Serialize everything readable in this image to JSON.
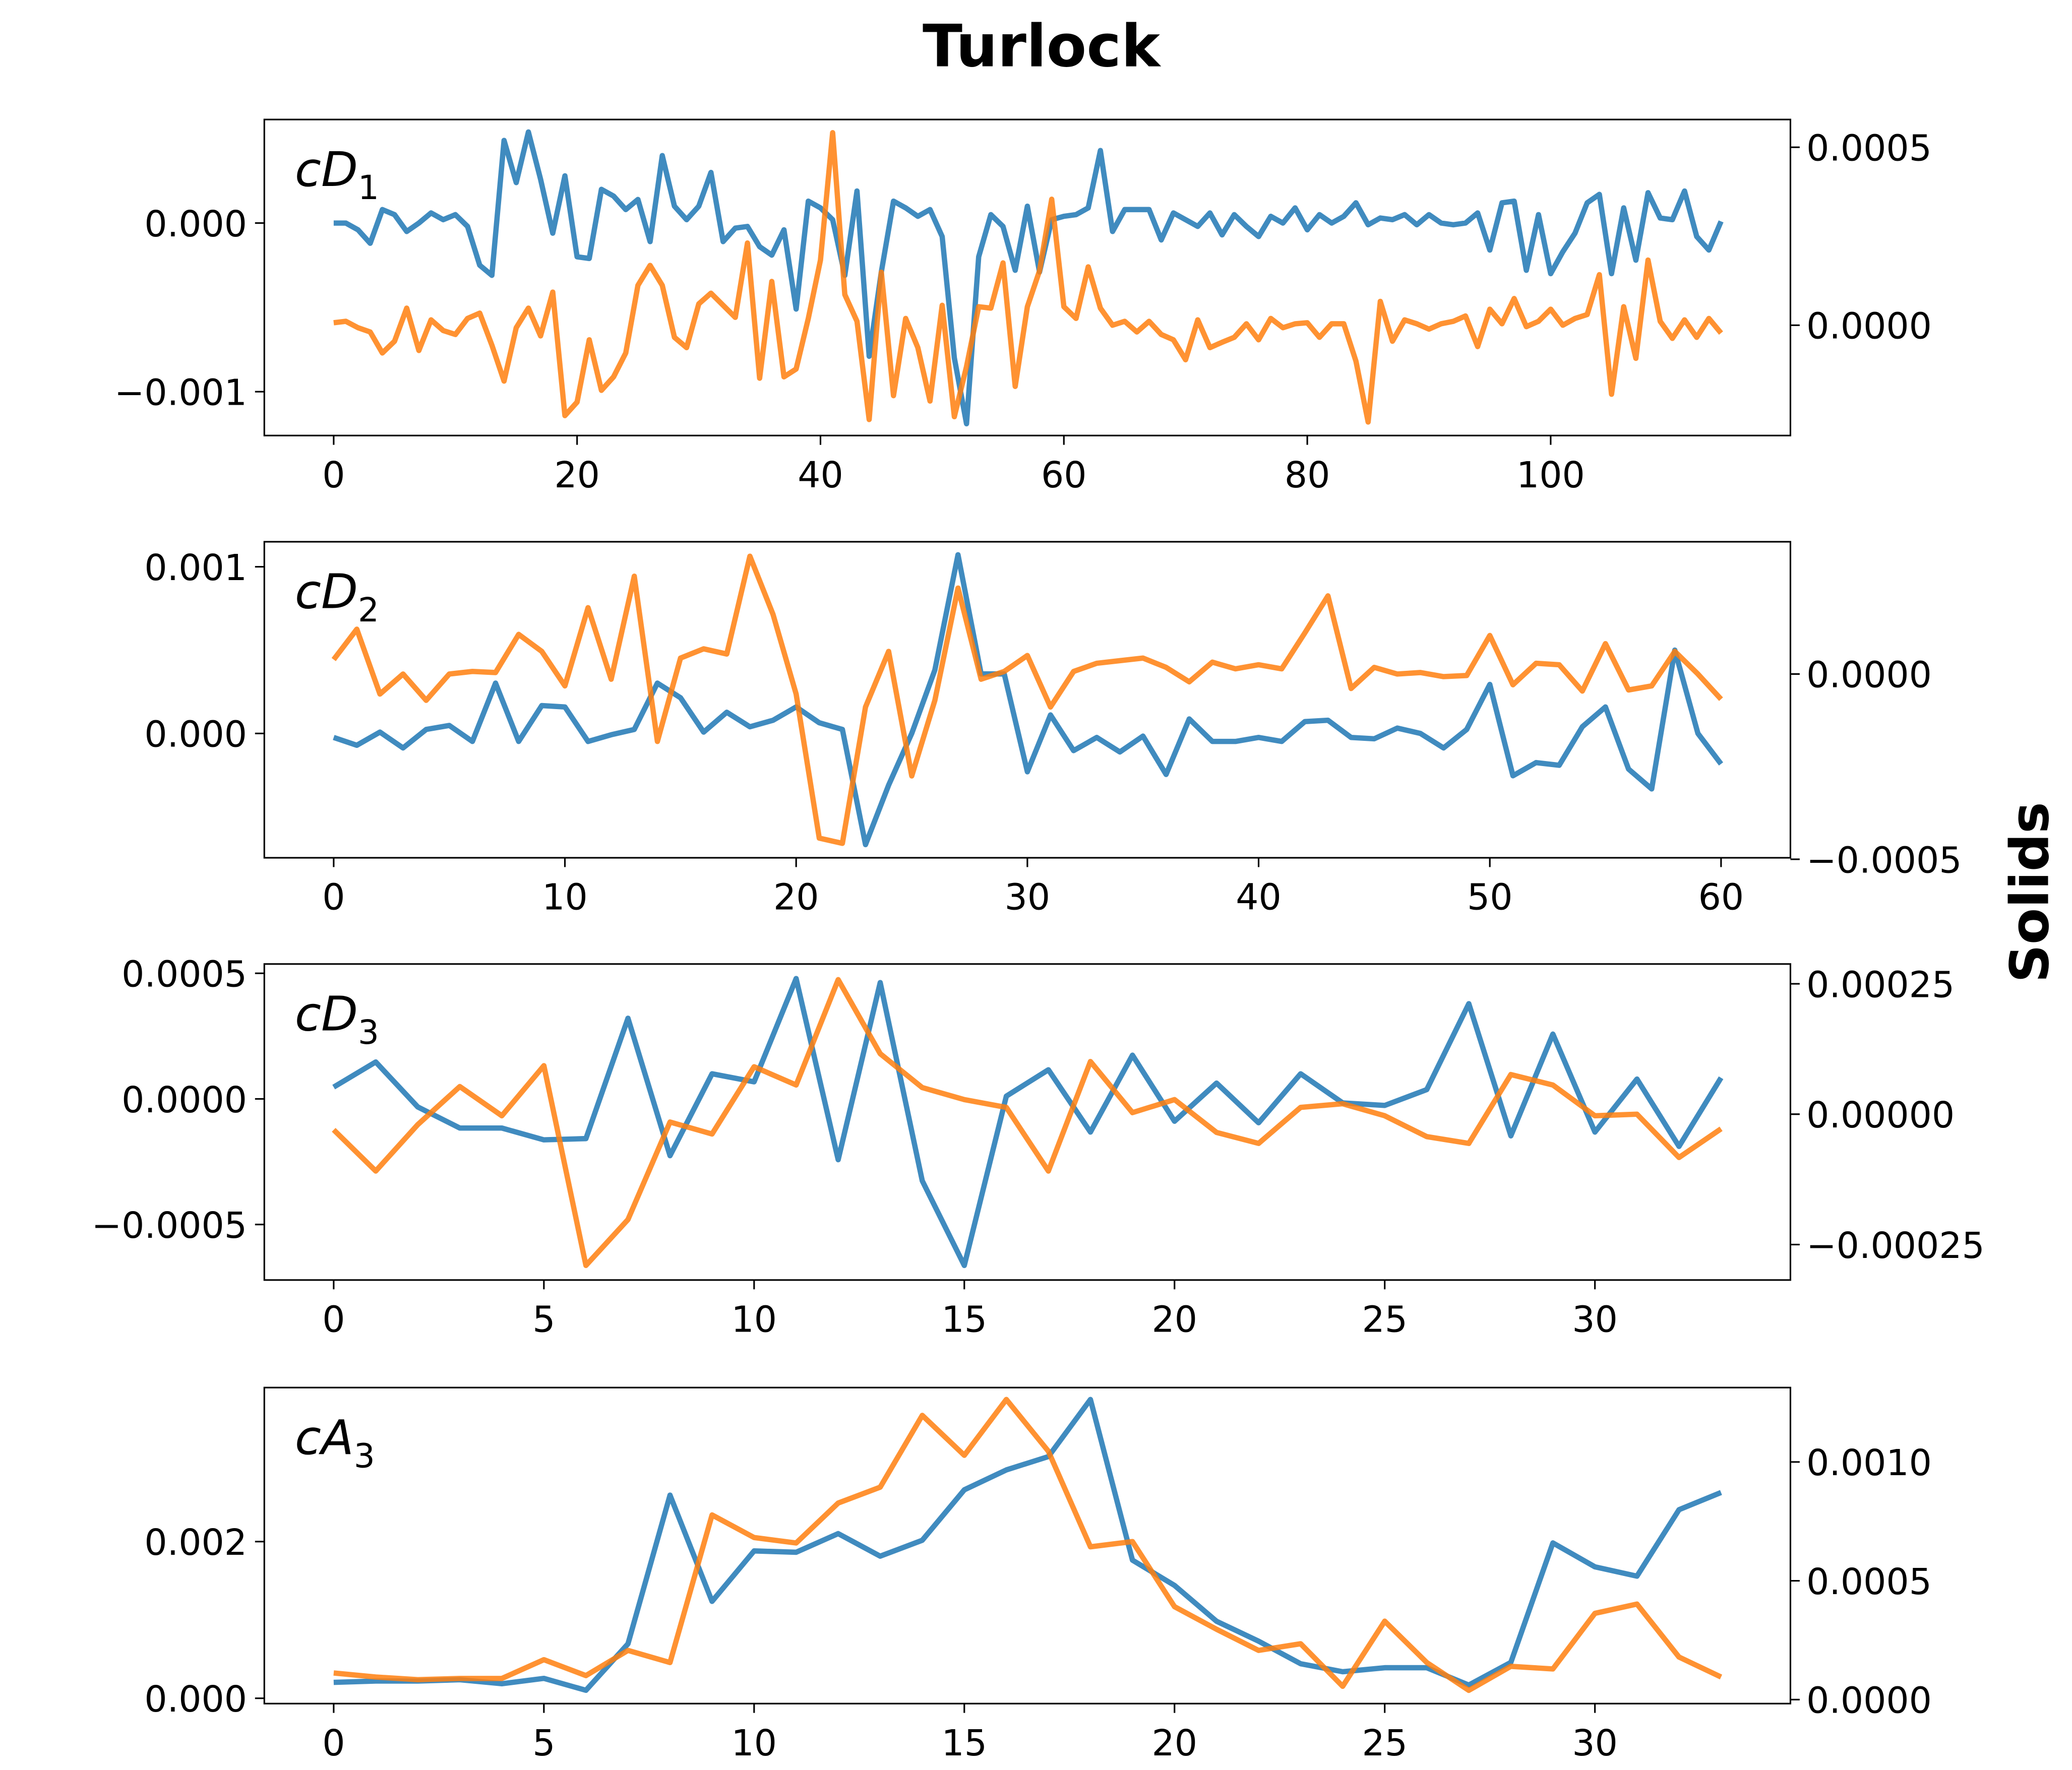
{
  "title": "Turlock",
  "y2label": "Solids",
  "y2label_color": "#ff7f0e",
  "chart_data": [
    {
      "type": "line",
      "label": {
        "text": "cD",
        "subscript": "1"
      },
      "x": [
        0,
        1,
        2,
        3,
        4,
        5,
        6,
        7,
        8,
        9,
        10,
        11,
        12,
        13,
        14,
        15,
        16,
        17,
        18,
        19,
        20,
        21,
        22,
        23,
        24,
        25,
        26,
        27,
        28,
        29,
        30,
        31,
        32,
        33,
        34,
        35,
        36,
        37,
        38,
        39,
        40,
        41,
        42,
        43,
        44,
        45,
        46,
        47,
        48,
        49,
        50,
        51,
        52,
        53,
        54,
        55,
        56,
        57,
        58,
        59,
        60,
        61,
        62,
        63,
        64,
        65,
        66,
        67,
        68,
        69,
        70,
        71,
        72,
        73,
        74,
        75,
        76,
        77,
        78,
        79,
        80,
        81,
        82,
        83,
        84,
        85,
        86,
        87,
        88,
        89,
        90,
        91,
        92,
        93,
        94,
        95,
        96,
        97,
        98,
        99,
        100,
        101,
        102,
        103,
        104,
        105,
        106,
        107,
        108,
        109,
        110,
        111,
        112,
        113,
        114
      ],
      "xlim": [
        -5.7,
        119.7
      ],
      "xticks": [
        0,
        20,
        40,
        60,
        80,
        100
      ],
      "ylim": [
        -0.00126,
        0.000614
      ],
      "yticks": [
        {
          "value": -0.001,
          "label": "−0.001"
        },
        {
          "value": 0,
          "label": "0.000"
        }
      ],
      "y2lim": [
        -0.00031,
        0.000578
      ],
      "y2ticks": [
        {
          "value": 0,
          "label": "0.0000"
        },
        0.0005
      ],
      "series": [
        {
          "color": "#1f77b4",
          "axis": "y",
          "values": [
            0,
            0,
            -4e-05,
            -0.00012,
            8e-05,
            5e-05,
            -5e-05,
            0,
            6e-05,
            2e-05,
            5e-05,
            -2e-05,
            -0.00025,
            -0.00031,
            0.00049,
            0.00024,
            0.00054,
            0.00026,
            -6e-05,
            0.00028,
            -0.0002,
            -0.00021,
            0.0002,
            0.00016,
            8e-05,
            0.00014,
            -0.00011,
            0.0004,
            0.0001,
            2e-05,
            0.0001,
            0.0003,
            -0.00011,
            -3e-05,
            -2e-05,
            -0.00014,
            -0.00019,
            -4e-05,
            -0.00051,
            0.00013,
            9e-05,
            2e-05,
            -0.00031,
            0.00019,
            -0.00079,
            -0.00029,
            0.00013,
            9e-05,
            4e-05,
            8e-05,
            -8e-05,
            -0.0008,
            -0.00119,
            -0.0002,
            5e-05,
            -2e-05,
            -0.00028,
            0.0001,
            -0.00029,
            2e-05,
            4e-05,
            5e-05,
            9e-05,
            0.00043,
            -5e-05,
            8e-05,
            8e-05,
            8e-05,
            -0.0001,
            6e-05,
            2e-05,
            -2e-05,
            6e-05,
            -7e-05,
            5e-05,
            -2e-05,
            -8e-05,
            4e-05,
            0,
            9e-05,
            -4e-05,
            5e-05,
            0,
            4e-05,
            0.00012,
            -1e-05,
            3e-05,
            2e-05,
            5e-05,
            -1e-05,
            5e-05,
            0,
            -1e-05,
            0,
            6e-05,
            -0.00016,
            0.00012,
            0.00013,
            -0.00028,
            5e-05,
            -0.0003,
            -0.00017,
            -6e-05,
            0.00012,
            0.00017,
            -0.0003,
            9e-05,
            -0.00022,
            0.00018,
            3e-05,
            2e-05,
            0.00019,
            -8e-05,
            -0.00016,
            1e-05
          ]
        },
        {
          "color": "#ff7f0e",
          "axis": "y2",
          "values": [
            7e-06,
            1.1e-05,
            -7e-06,
            -1.9e-05,
            -7.8e-05,
            -4.5e-05,
            4.8e-05,
            -7.1e-05,
            1.5e-05,
            -1.5e-05,
            -2.6e-05,
            1.9e-05,
            3.4e-05,
            -5.6e-05,
            -0.000157,
            -7e-06,
            4.8e-05,
            -3e-05,
            9.3e-05,
            -0.000254,
            -0.000216,
            -4.1e-05,
            -0.000183,
            -0.000145,
            -7.8e-05,
            0.000112,
            0.000168,
            0.000112,
            -3.4e-05,
            -6.3e-05,
            6e-05,
            9e-05,
            5.6e-05,
            2.2e-05,
            0.000231,
            -0.000149,
            0.000123,
            -0.000145,
            -0.000123,
            1.9e-05,
            0.000183,
            0.000541,
            8.6e-05,
            1.1e-05,
            -0.000265,
            0.000149,
            -0.000198,
            1.9e-05,
            -6.3e-05,
            -0.000213,
            5.6e-05,
            -0.000257,
            -0.000116,
            5.2e-05,
            4.8e-05,
            0.000175,
            -0.000172,
            5.2e-05,
            0.000153,
            0.000354,
            5.2e-05,
            1.9e-05,
            0.000164,
            4.8e-05,
            0,
            1.1e-05,
            -1.9e-05,
            1.1e-05,
            -2.6e-05,
            -4.1e-05,
            -9.7e-05,
            1.5e-05,
            -6.3e-05,
            -4.8e-05,
            -3.4e-05,
            4e-06,
            -4.1e-05,
            1.9e-05,
            -7e-06,
            4e-06,
            7e-06,
            -3.4e-05,
            4e-06,
            4e-06,
            -0.000101,
            -0.000272,
            6.7e-05,
            -4.5e-05,
            1.5e-05,
            4e-06,
            -1.1e-05,
            4e-06,
            1.1e-05,
            2.6e-05,
            -6e-05,
            4.5e-05,
            4e-06,
            7.5e-05,
            -4e-06,
            1.1e-05,
            4.5e-05,
            0,
            1.9e-05,
            3e-05,
            0.000142,
            -0.000194,
            5.2e-05,
            -9.3e-05,
            0.000183,
            1.1e-05,
            -3.7e-05,
            1.5e-05,
            -3.4e-05,
            1.9e-05,
            -2.2e-05
          ]
        }
      ]
    },
    {
      "type": "line",
      "label": {
        "text": "cD",
        "subscript": "2"
      },
      "x": [
        0,
        1,
        2,
        3,
        4,
        5,
        6,
        7,
        8,
        9,
        10,
        11,
        12,
        13,
        14,
        15,
        16,
        17,
        18,
        19,
        20,
        21,
        22,
        23,
        24,
        25,
        26,
        27,
        28,
        29,
        30,
        31,
        32,
        33,
        34,
        35,
        36,
        37,
        38,
        39,
        40,
        41,
        42,
        43,
        44,
        45,
        46,
        47,
        48,
        49,
        50,
        51,
        52,
        53,
        54,
        55,
        56,
        57,
        58,
        59,
        60
      ],
      "xlim": [
        -3,
        63
      ],
      "xticks": [
        0,
        10,
        20,
        30,
        40,
        50,
        60
      ],
      "ylim": [
        -0.000746,
        0.00115
      ],
      "yticks": [
        {
          "value": 0,
          "label": "0.000"
        },
        0.001
      ],
      "y2lim": [
        -0.000496,
        0.000357
      ],
      "y2ticks": [
        {
          "value": -0.0005,
          "label": "−0.0005"
        },
        {
          "value": 0,
          "label": "0.0000"
        }
      ],
      "series": [
        {
          "color": "#1f77b4",
          "axis": "y",
          "values": [
            -2.4e-05,
            -7.1e-05,
            8e-06,
            -8.7e-05,
            2.4e-05,
            4.8e-05,
            -4.8e-05,
            0.000302,
            -4.8e-05,
            0.000167,
            0.000159,
            -4.8e-05,
            -8e-06,
            2.4e-05,
            0.000302,
            0.000214,
            8e-06,
            0.000127,
            4e-05,
            7.9e-05,
            0.000159,
            6.4e-05,
            2.4e-05,
            -0.000667,
            -0.00031,
            0,
            0.000381,
            0.001072,
            0.000357,
            0.000357,
            -0.00023,
            0.000111,
            -0.000103,
            -2.4e-05,
            -0.000111,
            -1.6e-05,
            -0.000246,
            8.7e-05,
            -4.8e-05,
            -4.8e-05,
            -2.4e-05,
            -4.8e-05,
            7.1e-05,
            7.9e-05,
            -2.4e-05,
            -3.2e-05,
            3.2e-05,
            0,
            -8.7e-05,
            2.4e-05,
            0.000294,
            -0.000254,
            -0.000175,
            -0.000191,
            4e-05,
            0.000159,
            -0.000214,
            -0.000333,
            0.0005,
            0,
            -0.000183
          ]
        },
        {
          "color": "#ff7f0e",
          "axis": "y2",
          "values": [
            3.9e-05,
            0.000121,
            -5.4e-05,
            0,
            -7.1e-05,
            0,
            7e-06,
            4e-06,
            0.000107,
            6.1e-05,
            -3.2e-05,
            0.000179,
            -1.4e-05,
            0.000264,
            -0.000182,
            4.3e-05,
            6.8e-05,
            5.4e-05,
            0.000318,
            0.000161,
            -5.4e-05,
            -0.000443,
            -0.000457,
            -8.9e-05,
            6.1e-05,
            -0.000275,
            -7.1e-05,
            0.000232,
            -1.4e-05,
            7e-06,
            5e-05,
            -8.9e-05,
            7e-06,
            2.9e-05,
            3.6e-05,
            4.3e-05,
            1.8e-05,
            -2.1e-05,
            3.2e-05,
            1.4e-05,
            2.5e-05,
            1.4e-05,
            0.000111,
            0.000211,
            -3.9e-05,
            1.8e-05,
            0,
            4e-06,
            -7e-06,
            -4e-06,
            0.000104,
            -2.9e-05,
            2.9e-05,
            2.5e-05,
            -4.6e-05,
            8.2e-05,
            -4.3e-05,
            -3.2e-05,
            6.1e-05,
            0,
            -6.8e-05
          ]
        }
      ]
    },
    {
      "type": "line",
      "label": {
        "text": "cD",
        "subscript": "3"
      },
      "x": [
        0,
        1,
        2,
        3,
        4,
        5,
        6,
        7,
        8,
        9,
        10,
        11,
        12,
        13,
        14,
        15,
        16,
        17,
        18,
        19,
        20,
        21,
        22,
        23,
        24,
        25,
        26,
        27,
        28,
        29,
        30,
        31,
        32,
        33
      ],
      "xlim": [
        -1.65,
        34.65
      ],
      "xticks": [
        0,
        5,
        10,
        15,
        20,
        25,
        30
      ],
      "ylim": [
        -0.000721,
        0.000537
      ],
      "yticks": [
        {
          "value": -0.0005,
          "label": "−0.0005"
        },
        {
          "value": 0,
          "label": "0.0000"
        },
        0.0005
      ],
      "y2lim": [
        -0.000318,
        0.000288
      ],
      "y2ticks": [
        {
          "value": -0.00025,
          "label": "−0.00025"
        },
        {
          "value": 0,
          "label": "0.00000"
        },
        0.00025
      ],
      "series": [
        {
          "color": "#1f77b4",
          "axis": "y",
          "values": [
            4.7e-05,
            0.000147,
            -3.2e-05,
            -0.000116,
            -0.000116,
            -0.000163,
            -0.000158,
            0.000321,
            -0.000226,
            0.0001,
            6.8e-05,
            0.000479,
            -0.000242,
            0.000463,
            -0.000326,
            -0.000663,
            1.1e-05,
            0.000116,
            -0.000132,
            0.000174,
            -8.9e-05,
            6.3e-05,
            -9.5e-05,
            0.0001,
            -1.6e-05,
            -2.6e-05,
            3.7e-05,
            0.000379,
            -0.000147,
            0.000258,
            -0.000132,
            7.9e-05,
            -0.000189,
            8.4e-05
          ]
        },
        {
          "color": "#ff7f0e",
          "axis": "y2",
          "values": [
            -3e-05,
            -0.000109,
            -2e-05,
            5.3e-05,
            -3e-06,
            9.3e-05,
            -0.00029,
            -0.000202,
            -1.5e-05,
            -3.8e-05,
            9.1e-05,
            5.6e-05,
            0.000258,
            0.000116,
            5.1e-05,
            2.8e-05,
            1.3e-05,
            -0.000109,
            0.000101,
            3e-06,
            2.8e-05,
            -3.5e-05,
            -5.6e-05,
            1.3e-05,
            2e-05,
            -3e-06,
            -4.3e-05,
            -5.6e-05,
            7.6e-05,
            5.6e-05,
            -3e-06,
            0,
            -8.3e-05,
            -2.8e-05
          ]
        }
      ]
    },
    {
      "type": "line",
      "label": {
        "text": "cA",
        "subscript": "3"
      },
      "x": [
        0,
        1,
        2,
        3,
        4,
        5,
        6,
        7,
        8,
        9,
        10,
        11,
        12,
        13,
        14,
        15,
        16,
        17,
        18,
        19,
        20,
        21,
        22,
        23,
        24,
        25,
        26,
        27,
        28,
        29,
        30,
        31,
        32,
        33
      ],
      "xlim": [
        -1.65,
        34.65
      ],
      "xticks": [
        0,
        5,
        10,
        15,
        20,
        25,
        30
      ],
      "ylim": [
        -6.78e-05,
        0.003966
      ],
      "yticks": [
        {
          "value": 0,
          "label": "0.000"
        },
        0.002
      ],
      "y2lim": [
        -1.68e-05,
        0.001313
      ],
      "y2ticks": [
        {
          "value": 0,
          "label": "0.0000"
        },
        0.0005,
        {
          "value": 0.001,
          "label": "0.0010"
        }
      ],
      "series": [
        {
          "color": "#1f77b4",
          "axis": "y",
          "values": [
            0.000203,
            0.00022,
            0.00022,
            0.000237,
            0.000186,
            0.000254,
            0.000102,
            0.000695,
            0.002593,
            0.001237,
            0.001881,
            0.001864,
            0.002102,
            0.001814,
            0.002017,
            0.002661,
            0.002915,
            0.003085,
            0.003814,
            0.001763,
            0.001441,
            0.000983,
            0.000729,
            0.000441,
            0.000339,
            0.00039,
            0.00039,
            0.000169,
            0.000458,
            0.001983,
            0.001678,
            0.001559,
            0.002407,
            0.002627
          ]
        },
        {
          "color": "#ff7f0e",
          "axis": "y2",
          "values": [
            0.000112,
            9.5e-05,
            8.4e-05,
            8.9e-05,
            8.9e-05,
            0.000168,
            0.000101,
            0.000207,
            0.000156,
            0.000777,
            0.000682,
            0.000659,
            0.000827,
            0.000894,
            0.001196,
            0.001028,
            0.001263,
            0.001045,
            0.000643,
            0.000665,
            0.000391,
            0.000296,
            0.000207,
            0.000235,
            5.6e-05,
            0.00033,
            0.000156,
            3.9e-05,
            0.00014,
            0.000129,
            0.000363,
            0.000402,
            0.000179,
            9.5e-05
          ]
        }
      ]
    }
  ]
}
